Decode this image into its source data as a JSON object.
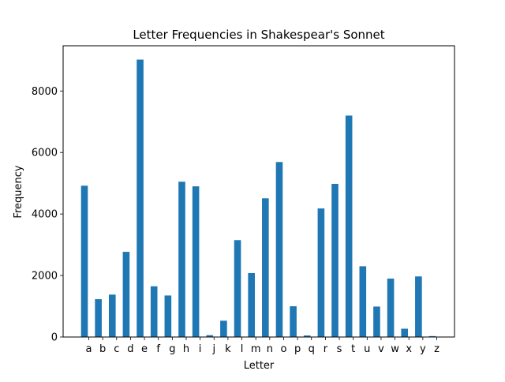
{
  "chart_data": {
    "type": "bar",
    "title": "Letter Frequencies in Shakespear's Sonnet",
    "xlabel": "Letter",
    "ylabel": "Frequency",
    "categories": [
      "a",
      "b",
      "c",
      "d",
      "e",
      "f",
      "g",
      "h",
      "i",
      "j",
      "k",
      "l",
      "m",
      "n",
      "o",
      "p",
      "q",
      "r",
      "s",
      "t",
      "u",
      "v",
      "w",
      "x",
      "y",
      "z"
    ],
    "values": [
      4920,
      1230,
      1380,
      2770,
      9020,
      1650,
      1350,
      5050,
      4900,
      60,
      530,
      3150,
      2080,
      4510,
      5690,
      1000,
      50,
      4180,
      4980,
      7200,
      2300,
      990,
      1900,
      270,
      1970,
      30
    ],
    "ylim": [
      0,
      9470
    ],
    "yticks": [
      0,
      2000,
      4000,
      6000,
      8000
    ],
    "bar_color": "#1f77b4",
    "grid": false,
    "legend": false
  }
}
